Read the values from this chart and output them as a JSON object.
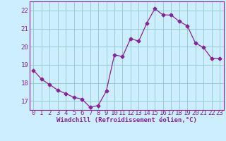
{
  "x": [
    0,
    1,
    2,
    3,
    4,
    5,
    6,
    7,
    8,
    9,
    10,
    11,
    12,
    13,
    14,
    15,
    16,
    17,
    18,
    19,
    20,
    21,
    22,
    23
  ],
  "y": [
    18.7,
    18.2,
    17.9,
    17.6,
    17.4,
    17.2,
    17.1,
    16.65,
    16.75,
    17.55,
    19.55,
    19.45,
    20.45,
    20.3,
    21.3,
    22.1,
    21.75,
    21.75,
    21.4,
    21.15,
    20.2,
    19.95,
    19.35,
    19.35
  ],
  "line_color": "#882299",
  "marker": "D",
  "marker_size": 2.5,
  "bg_color": "#cceeff",
  "grid_color": "#99cccc",
  "axis_color": "#882299",
  "xlabel": "Windchill (Refroidissement éolien,°C)",
  "ylim": [
    16.5,
    22.5
  ],
  "xlim": [
    -0.5,
    23.5
  ],
  "yticks": [
    17,
    18,
    19,
    20,
    21,
    22
  ],
  "xticks": [
    0,
    1,
    2,
    3,
    4,
    5,
    6,
    7,
    8,
    9,
    10,
    11,
    12,
    13,
    14,
    15,
    16,
    17,
    18,
    19,
    20,
    21,
    22,
    23
  ],
  "font_size_xlabel": 6.5,
  "font_size_ticks": 6.5
}
